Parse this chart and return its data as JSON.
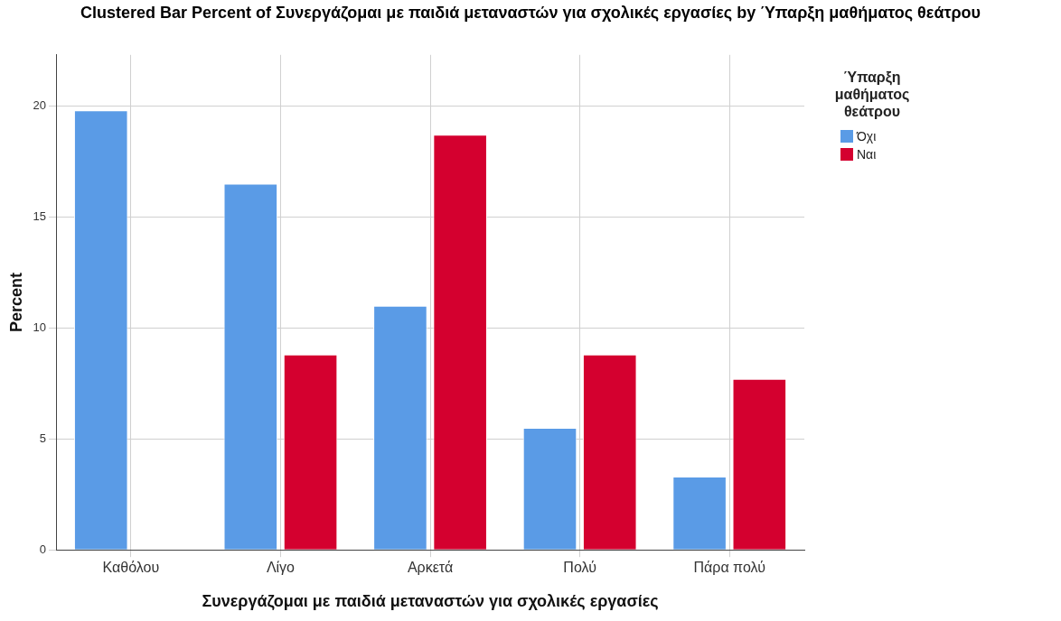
{
  "chart_data": {
    "type": "bar",
    "title": "Clustered Bar Percent of Συνεργάζομαι με παιδιά μεταναστών για σχολικές εργασίες by Ύπαρξη μαθήματος θεάτρου",
    "xlabel": "Συνεργάζομαι με παιδιά μεταναστών για σχολικές εργασίες",
    "ylabel": "Percent",
    "legend_title": "Ύπαρξη μαθήματος θεάτρου",
    "categories": [
      "Καθόλου",
      "Λίγο",
      "Αρκετά",
      "Πολύ",
      "Πάρα πολύ"
    ],
    "series": [
      {
        "name": "Όχι",
        "color": "#5a9be6",
        "values": [
          19.8,
          16.5,
          11.0,
          5.5,
          3.3
        ]
      },
      {
        "name": "Ναι",
        "color": "#d4002f",
        "values": [
          0,
          8.8,
          18.7,
          8.8,
          7.7
        ]
      }
    ],
    "ylim": [
      0,
      22.3
    ],
    "yticks": [
      0,
      5,
      10,
      15,
      20
    ],
    "grid": true,
    "legend": "right"
  }
}
